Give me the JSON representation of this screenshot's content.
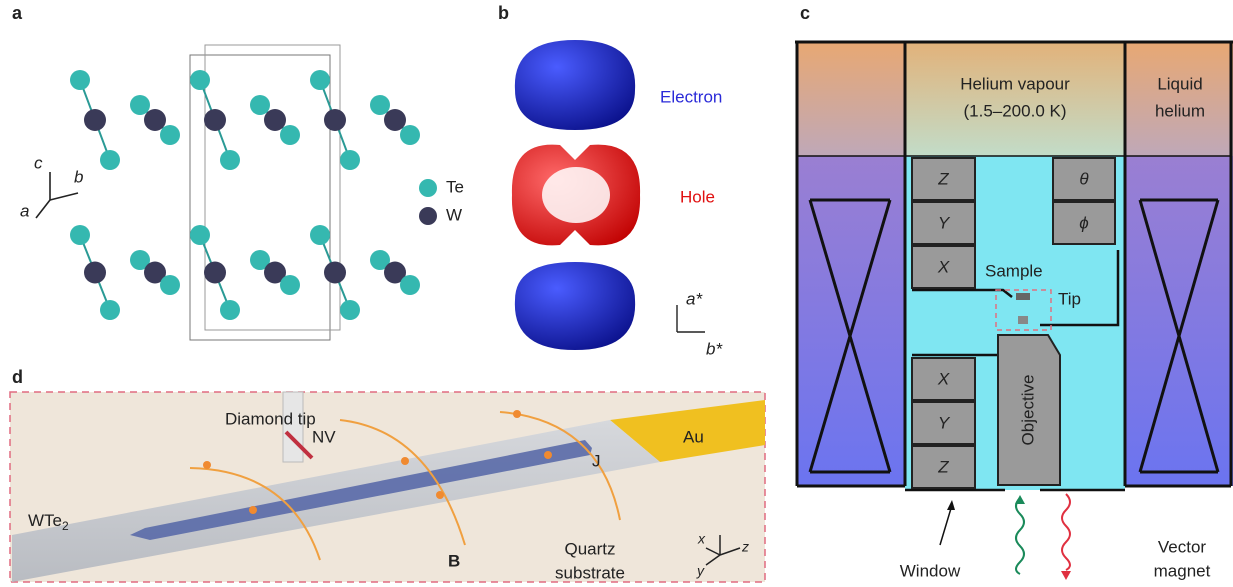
{
  "panels": {
    "a": {
      "label": "a",
      "axes": [
        "c",
        "b",
        "a"
      ],
      "legend": [
        "Te",
        "W"
      ]
    },
    "b": {
      "label": "b",
      "electron": "Electron",
      "hole": "Hole",
      "axes": [
        "a*",
        "b*"
      ]
    },
    "c": {
      "label": "c",
      "vapour": [
        "Helium vapour",
        "(1.5–200.0 K)"
      ],
      "liquid": [
        "Liquid",
        "helium"
      ],
      "upper_stages": [
        "Z",
        "Y",
        "X"
      ],
      "rotators": [
        "θ",
        "ϕ"
      ],
      "sample": "Sample",
      "tip": "Tip",
      "lower_stages": [
        "X",
        "Y",
        "Z"
      ],
      "objective": "Objective",
      "window": "Window",
      "magnet": [
        "Vector",
        "magnet"
      ]
    },
    "d": {
      "label": "d",
      "diamond_tip": "Diamond tip",
      "nv": "NV",
      "au": "Au",
      "current": "J",
      "material": {
        "text": "WTe",
        "subscript": "2"
      },
      "field": "B",
      "substrate": [
        "Quartz",
        "substrate"
      ],
      "axes": [
        "x",
        "z",
        "y"
      ]
    }
  }
}
